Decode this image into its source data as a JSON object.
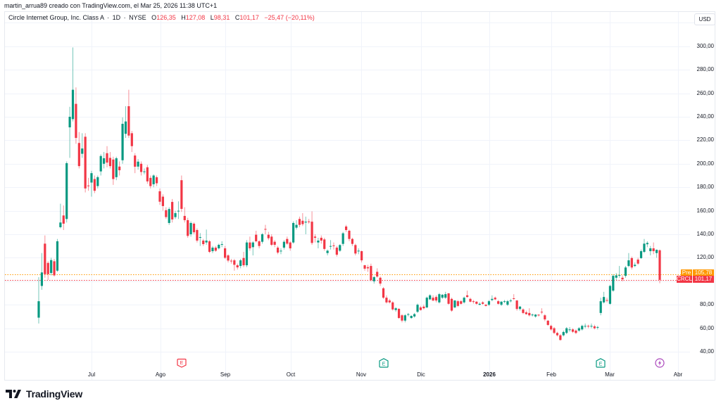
{
  "header": {
    "credit": "martin_arrua89 creado con TradingView.com, el Mar 25, 2026 11:38 UTC+1"
  },
  "legend": {
    "symbol_name": "Circle Internet Group, Inc. Class A",
    "separator": "·",
    "interval": "1D",
    "exchange": "NYSE",
    "open_label": "O",
    "open": "126,35",
    "high_label": "H",
    "high": "127,08",
    "low_label": "L",
    "low": "98,31",
    "close_label": "C",
    "close": "101,17",
    "change": "−25,47",
    "change_pct": "(−20,11%)"
  },
  "price_axis": {
    "currency": "USD",
    "ticks": [
      "300,00",
      "280,00",
      "260,00",
      "240,00",
      "220,00",
      "200,00",
      "180,00",
      "160,00",
      "140,00",
      "120,00",
      "80,00",
      "60,00",
      "40,00"
    ]
  },
  "time_axis": {
    "labels": [
      "Jul",
      "Ago",
      "Sep",
      "Oct",
      "Nov",
      "Dic",
      "2026",
      "Feb",
      "Mar",
      "Abr"
    ]
  },
  "price_labels": {
    "pre": {
      "tag": "Pre",
      "value": "105,78"
    },
    "last": {
      "tag": "CRCL",
      "value": "101,17"
    }
  },
  "events": [
    {
      "type": "earnings",
      "glyph": "E",
      "color": "#f23645"
    },
    {
      "type": "earnings",
      "glyph": "E",
      "color": "#089981"
    },
    {
      "type": "earnings",
      "glyph": "E",
      "color": "#089981"
    },
    {
      "type": "news-flash",
      "glyph": "⚡",
      "color": "#ab47bc"
    }
  ],
  "branding": {
    "logo_text": "TradingView"
  },
  "colors": {
    "up": "#089981",
    "down": "#f23645",
    "pre_market": "#ff9800",
    "grid": "#f0f3fa",
    "text": "#131722"
  },
  "chart_data": {
    "type": "candlestick",
    "title": "Circle Internet Group, Inc. Class A · 1D · NYSE",
    "symbol": "CRCL",
    "xlabel": "",
    "ylabel": "USD",
    "ylim": [
      40,
      300
    ],
    "yticks": [
      40,
      60,
      80,
      100,
      120,
      140,
      160,
      180,
      200,
      220,
      240,
      260,
      280,
      300
    ],
    "x_tick_labels": [
      "Jul",
      "Ago",
      "Sep",
      "Oct",
      "Nov",
      "Dic",
      "2026",
      "Feb",
      "Mar",
      "Abr"
    ],
    "grid": true,
    "last_price": 101.17,
    "pre_market_price": 105.78,
    "ohlc_fields": [
      "open",
      "high",
      "low",
      "close"
    ],
    "candles": [
      [
        69,
        103.5,
        64,
        83
      ],
      [
        96,
        124,
        92.7,
        107.5
      ],
      [
        132,
        139,
        103,
        106
      ],
      [
        115.6,
        117,
        101,
        106
      ],
      [
        107,
        120,
        105,
        118
      ],
      [
        117,
        119,
        104,
        105
      ],
      [
        109,
        136,
        108,
        134
      ],
      [
        146,
        166,
        145,
        150
      ],
      [
        156,
        164.5,
        143.6,
        149
      ],
      [
        153,
        202,
        150,
        200.5
      ],
      [
        231,
        248.5,
        205,
        240
      ],
      [
        238,
        299,
        236,
        263
      ],
      [
        251,
        265,
        217,
        222
      ],
      [
        217.7,
        227,
        196,
        198
      ],
      [
        208.5,
        226,
        205,
        213
      ],
      [
        223,
        226,
        175.6,
        179
      ],
      [
        181.5,
        188,
        177,
        181
      ],
      [
        184,
        194,
        172,
        192
      ],
      [
        187,
        190,
        175,
        177
      ],
      [
        181,
        190,
        179,
        188.6
      ],
      [
        193.5,
        208,
        190,
        206.6
      ],
      [
        200,
        210,
        196,
        204.7
      ],
      [
        209,
        215,
        197,
        201
      ],
      [
        205,
        210,
        196,
        198
      ],
      [
        203.6,
        206,
        182,
        187
      ],
      [
        188.6,
        206,
        186,
        204.7
      ],
      [
        197.6,
        202,
        190,
        194.5
      ],
      [
        203,
        239.5,
        200,
        234
      ],
      [
        225.5,
        249,
        222,
        236
      ],
      [
        249,
        263,
        222,
        224
      ],
      [
        226,
        228,
        210,
        215
      ],
      [
        207,
        209,
        192,
        197.5
      ],
      [
        197.6,
        204,
        195,
        201.8
      ],
      [
        200,
        202,
        190,
        193
      ],
      [
        193,
        196,
        191,
        193.5
      ],
      [
        197,
        199,
        183,
        185
      ],
      [
        188,
        190,
        179,
        181
      ],
      [
        182.6,
        191,
        180,
        190
      ],
      [
        188.5,
        190,
        181,
        183.4
      ],
      [
        176.6,
        179,
        165,
        167.7
      ],
      [
        172,
        174,
        160,
        164
      ],
      [
        160.5,
        163,
        153,
        154.6
      ],
      [
        149.6,
        163,
        148,
        161.5
      ],
      [
        167.5,
        170,
        150,
        152.6
      ],
      [
        154.6,
        160,
        153,
        158
      ],
      [
        159.5,
        168,
        153,
        160
      ],
      [
        186,
        190,
        159,
        161.6
      ],
      [
        155.6,
        163,
        150,
        152
      ],
      [
        152,
        154,
        137,
        138.6
      ],
      [
        140,
        151,
        138,
        149.6
      ],
      [
        149,
        150,
        140,
        141.7
      ],
      [
        143.6,
        145,
        133,
        134.6
      ],
      [
        137,
        141,
        130,
        137.6
      ],
      [
        134.6,
        136,
        130,
        131.6
      ],
      [
        133,
        144,
        131,
        134.6
      ],
      [
        134,
        135,
        124,
        125
      ],
      [
        125.6,
        130,
        124,
        128.6
      ],
      [
        128.6,
        130,
        125,
        126
      ],
      [
        128,
        132,
        127,
        131
      ],
      [
        131,
        134,
        129,
        131.6
      ],
      [
        128,
        130,
        119,
        120
      ],
      [
        122,
        123,
        116,
        117.6
      ],
      [
        117.5,
        119,
        115,
        117
      ],
      [
        117.8,
        119,
        109,
        114
      ],
      [
        113.6,
        115,
        110,
        111.8
      ],
      [
        113,
        119,
        111,
        117.8
      ],
      [
        119.8,
        125,
        112,
        113.6
      ],
      [
        113.6,
        135,
        112,
        133
      ],
      [
        133,
        138,
        126,
        128
      ],
      [
        129,
        134,
        122,
        133
      ],
      [
        139.6,
        143,
        133,
        134
      ],
      [
        134,
        135,
        128,
        130
      ],
      [
        133.6,
        141,
        132,
        140
      ],
      [
        144.5,
        148,
        140,
        144
      ],
      [
        139.6,
        142,
        135,
        136.6
      ],
      [
        138,
        140,
        130,
        131
      ],
      [
        133.6,
        135,
        129,
        131
      ],
      [
        128.6,
        130,
        123,
        124.4
      ],
      [
        125.5,
        128,
        123,
        126
      ],
      [
        128.6,
        135,
        127,
        133.6
      ],
      [
        136,
        138,
        131,
        132
      ],
      [
        133,
        134,
        126,
        128
      ],
      [
        133,
        151,
        132,
        149.6
      ],
      [
        145.6,
        152,
        144,
        148
      ],
      [
        153,
        155,
        146,
        148
      ],
      [
        151.5,
        158,
        147,
        148.6
      ],
      [
        150,
        155,
        140,
        150.7
      ],
      [
        150.9,
        153,
        149,
        150.5
      ],
      [
        150.7,
        159.5,
        131,
        132.6
      ],
      [
        138,
        140,
        133,
        137
      ],
      [
        133,
        137,
        128,
        134.6
      ],
      [
        137,
        139,
        132,
        134.6
      ],
      [
        135.6,
        137,
        126,
        127.5
      ],
      [
        124,
        127,
        122,
        126
      ],
      [
        129.5,
        135,
        127,
        130
      ],
      [
        130.5,
        133,
        127,
        130
      ],
      [
        128.6,
        130,
        121,
        122.6
      ],
      [
        126,
        131.5,
        125,
        130.8
      ],
      [
        131.8,
        142,
        130,
        140.8
      ],
      [
        146.6,
        148,
        142,
        143.6
      ],
      [
        143,
        144,
        134,
        136
      ],
      [
        136,
        137,
        130,
        131.8
      ],
      [
        130.8,
        132,
        122,
        123.6
      ],
      [
        125.5,
        128,
        123,
        126
      ],
      [
        125.6,
        126,
        116,
        117.8
      ],
      [
        113.6,
        114,
        109,
        110.7
      ],
      [
        112,
        114,
        108,
        111
      ],
      [
        113,
        115,
        100,
        101
      ],
      [
        100,
        104.5,
        98,
        103.5
      ],
      [
        108,
        111,
        103,
        104
      ],
      [
        103,
        104,
        96,
        98
      ],
      [
        94,
        95,
        85,
        86
      ],
      [
        86,
        88,
        81,
        82
      ],
      [
        83.6,
        85,
        81,
        82
      ],
      [
        82,
        83,
        75,
        76
      ],
      [
        75.5,
        78,
        74,
        77
      ],
      [
        76.5,
        77,
        68,
        68.7
      ],
      [
        71,
        72,
        65,
        66.5
      ],
      [
        66.5,
        72,
        65,
        71
      ],
      [
        71.5,
        73,
        70,
        72
      ],
      [
        68.7,
        71,
        68,
        70.5
      ],
      [
        70,
        73,
        69,
        72
      ],
      [
        74,
        81,
        73,
        80
      ],
      [
        77.7,
        79,
        75,
        75.5
      ],
      [
        78.4,
        80,
        76,
        77
      ],
      [
        77.7,
        87,
        77,
        86
      ],
      [
        84.6,
        89,
        84,
        88
      ],
      [
        86,
        88,
        83,
        83.6
      ],
      [
        86.6,
        88,
        82,
        83.6
      ],
      [
        82,
        90,
        81,
        89
      ],
      [
        86,
        89,
        85,
        88.5
      ],
      [
        86,
        91,
        85,
        89
      ],
      [
        89.7,
        90,
        80,
        80.8
      ],
      [
        85,
        86,
        74,
        75
      ],
      [
        77.7,
        84,
        77,
        83.6
      ],
      [
        83,
        84,
        78,
        79
      ],
      [
        83,
        84,
        80,
        80.8
      ],
      [
        82,
        87,
        81,
        86
      ],
      [
        88,
        92,
        86,
        86.6
      ],
      [
        85,
        86,
        82,
        82.6
      ],
      [
        83,
        84,
        81,
        82.6
      ],
      [
        82.6,
        83,
        80,
        80.8
      ],
      [
        80,
        82,
        79.5,
        80.8
      ],
      [
        82,
        83,
        80,
        80.8
      ],
      [
        80,
        80.5,
        78.5,
        79
      ],
      [
        80,
        84,
        79,
        83
      ],
      [
        84,
        88,
        83,
        85
      ],
      [
        86,
        87,
        84,
        84.6
      ],
      [
        83,
        84,
        80,
        80.8
      ],
      [
        80,
        83,
        79,
        82.6
      ],
      [
        82.5,
        84,
        81.5,
        83
      ],
      [
        80,
        84,
        79,
        83
      ],
      [
        83,
        85,
        82,
        83.6
      ],
      [
        85.5,
        89,
        84,
        85
      ],
      [
        83.6,
        84,
        75,
        76.4
      ],
      [
        76.4,
        79,
        75,
        78.4
      ],
      [
        76,
        77,
        72,
        73
      ],
      [
        73.5,
        75,
        71.5,
        72
      ],
      [
        73,
        77,
        70,
        71
      ],
      [
        71,
        72.5,
        70,
        71.6
      ],
      [
        70,
        72,
        69,
        71.6
      ],
      [
        71.5,
        72,
        70,
        71
      ],
      [
        74,
        77,
        72,
        73.5
      ],
      [
        71,
        72,
        66,
        67.5
      ],
      [
        66.4,
        67,
        62,
        62.8
      ],
      [
        62,
        63,
        58,
        59
      ],
      [
        60,
        61,
        55,
        56
      ],
      [
        56,
        57,
        53,
        54
      ],
      [
        54,
        55,
        49.5,
        50
      ],
      [
        54,
        58,
        53,
        56.8
      ],
      [
        56,
        61,
        55,
        60
      ],
      [
        58.5,
        61,
        57,
        59
      ],
      [
        59,
        60,
        56,
        57
      ],
      [
        58,
        59,
        55,
        56
      ],
      [
        58,
        61,
        57,
        60
      ],
      [
        59,
        63,
        58,
        62
      ],
      [
        61.5,
        64,
        60,
        62
      ],
      [
        62,
        63,
        60,
        61.6
      ],
      [
        61.5,
        64,
        60,
        62
      ],
      [
        61.6,
        63,
        59,
        60
      ],
      [
        60.5,
        62,
        59,
        61
      ],
      [
        73,
        86,
        71,
        83
      ],
      [
        82,
        91,
        81,
        86.6
      ],
      [
        84,
        86,
        82,
        83.6
      ],
      [
        80.8,
        97,
        80,
        96
      ],
      [
        92,
        106,
        91,
        104.6
      ],
      [
        103,
        107,
        101,
        105
      ],
      [
        105,
        113,
        103,
        105.3
      ],
      [
        103,
        105,
        100,
        101.6
      ],
      [
        104.6,
        113,
        103,
        111.7
      ],
      [
        113,
        124,
        112,
        117.8
      ],
      [
        119.7,
        121,
        110,
        111.7
      ],
      [
        113,
        116,
        112,
        114
      ],
      [
        118.4,
        120,
        114,
        115
      ],
      [
        119.7,
        127,
        119,
        125.6
      ],
      [
        125,
        136,
        124,
        132
      ],
      [
        131.5,
        134,
        129,
        132.6
      ],
      [
        125.6,
        130,
        122,
        128
      ],
      [
        128,
        133,
        123,
        125.6
      ],
      [
        124,
        127,
        120,
        126.8
      ],
      [
        126.35,
        127.08,
        98.31,
        101.17
      ]
    ]
  }
}
